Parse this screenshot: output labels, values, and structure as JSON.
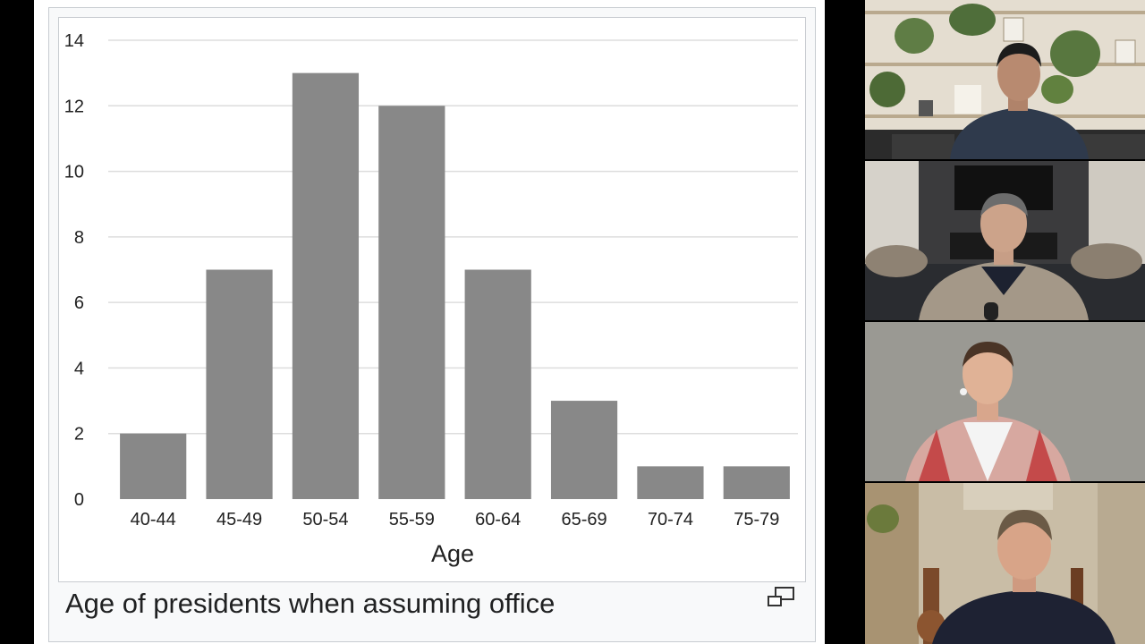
{
  "chart_data": {
    "type": "bar",
    "categories": [
      "40-44",
      "45-49",
      "50-54",
      "55-59",
      "60-64",
      "65-69",
      "70-74",
      "75-79"
    ],
    "values": [
      2,
      7,
      13,
      12,
      7,
      3,
      1,
      1
    ],
    "title": "",
    "xlabel": "Age",
    "ylabel": "",
    "ylim": [
      0,
      14
    ],
    "yticks": [
      0,
      2,
      4,
      6,
      8,
      10,
      12,
      14
    ],
    "grid": true,
    "bar_color": "#888888"
  },
  "caption": "Age of presidents when assuming office",
  "icons": {
    "enlarge": "enlarge-icon"
  },
  "participants": [
    {
      "tile": "participant-tile-1",
      "background": "bookshelf-plants"
    },
    {
      "tile": "participant-tile-2",
      "background": "living-room-fireplace"
    },
    {
      "tile": "participant-tile-3",
      "background": "grey-wall"
    },
    {
      "tile": "participant-tile-4",
      "background": "studio-guitars"
    }
  ]
}
